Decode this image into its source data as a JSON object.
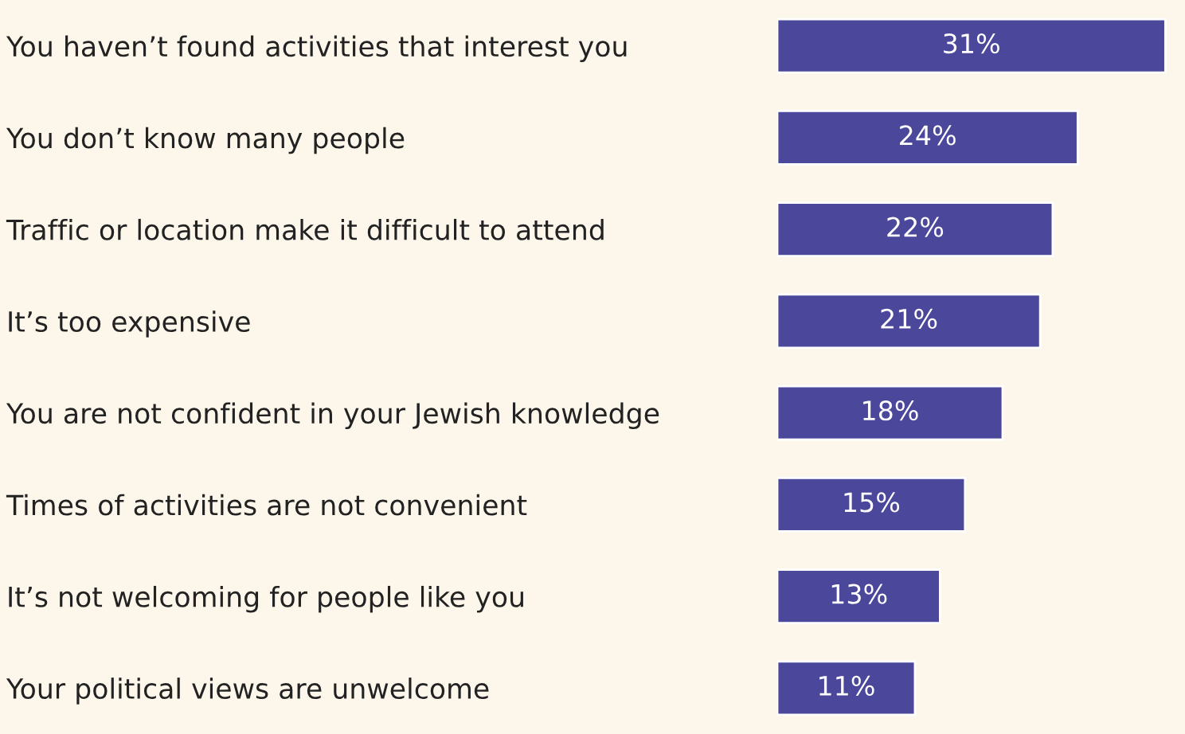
{
  "chart_data": {
    "type": "bar",
    "orientation": "horizontal",
    "categories": [
      "You haven’t found activities that interest you",
      "You don’t know many people",
      "Traffic or location make it difficult to attend",
      "It’s too expensive",
      "You are not confident in your Jewish knowledge",
      "Times of activities are not convenient",
      "It’s not welcoming for people like you",
      "Your political views are unwelcome"
    ],
    "values": [
      31,
      24,
      22,
      21,
      18,
      15,
      13,
      11
    ],
    "value_labels": [
      "31%",
      "24%",
      "22%",
      "21%",
      "18%",
      "15%",
      "13%",
      "11%"
    ],
    "color": "#4b479b",
    "tick_labels": "y",
    "grid": false,
    "legend": false
  }
}
